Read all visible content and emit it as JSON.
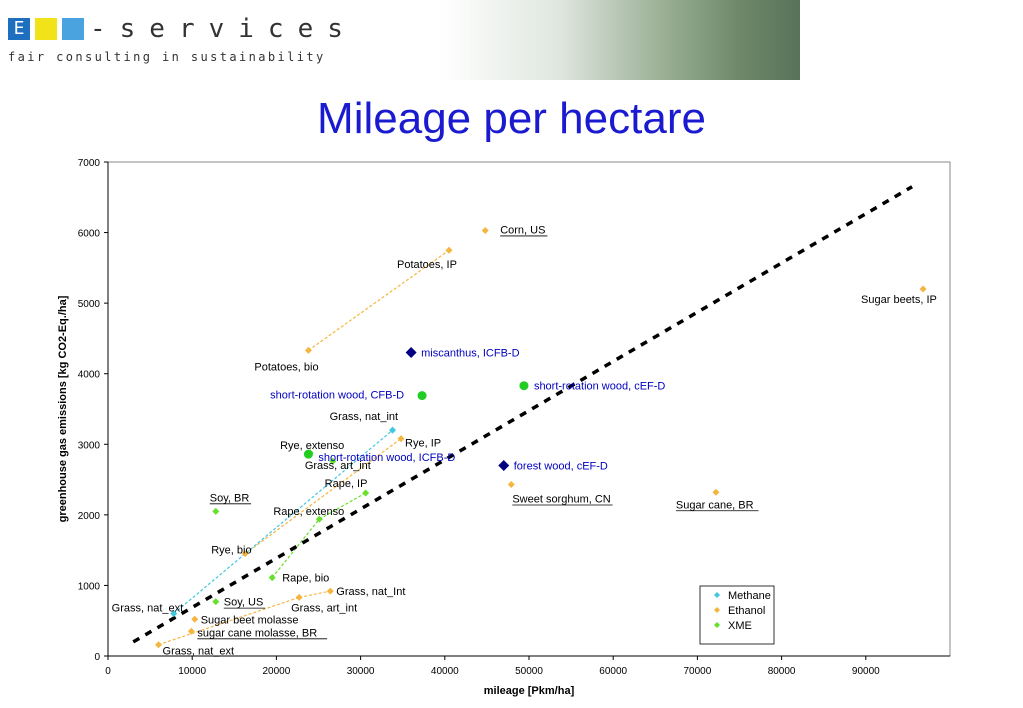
{
  "header": {
    "brand": "-services",
    "tagline": "fair consulting in sustainability",
    "logo_letter": "E"
  },
  "page_title": "Mileage per hectare",
  "colors": {
    "methane": "#40c8e0",
    "ethanol": "#f5b640",
    "xme": "#66e02a",
    "blue_marker": "#000080",
    "green_marker": "#22cc22",
    "trend": "#000000",
    "title": "#1a1ad0"
  },
  "chart_data": {
    "type": "scatter",
    "xlabel": "mileage [Pkm/ha]",
    "ylabel": "greenhouse gas emissions [kg CO2-Eq./ha]",
    "xlim": [
      0,
      100000
    ],
    "ylim": [
      0,
      7000
    ],
    "xticks": [
      "0",
      "10000",
      "20000",
      "30000",
      "40000",
      "50000",
      "60000",
      "70000",
      "80000",
      "90000"
    ],
    "yticks": [
      "0",
      "1000",
      "2000",
      "3000",
      "4000",
      "5000",
      "6000",
      "7000"
    ],
    "grid": "horizontal",
    "legend": {
      "position": "bottom-right",
      "entries": [
        "Methane",
        "Ethanol",
        "XME"
      ]
    },
    "trend_line": [
      [
        3000,
        200
      ],
      [
        95500,
        6650
      ]
    ],
    "series": [
      {
        "name": "Methane",
        "points": [
          {
            "label": "Grass, nat_ext",
            "x": 7800,
            "y": 600
          },
          {
            "label": "Grass, nat_int",
            "x": 33800,
            "y": 3200
          }
        ]
      },
      {
        "name": "Ethanol",
        "points": [
          {
            "label": "Corn, US",
            "x": 44800,
            "y": 6030
          },
          {
            "label": "Potatoes, IP",
            "x": 40500,
            "y": 5750
          },
          {
            "label": "Potatoes, bio",
            "x": 23800,
            "y": 4330
          },
          {
            "label": "Sugar beets, IP",
            "x": 96800,
            "y": 5200
          },
          {
            "label": "Rye, IP",
            "x": 34800,
            "y": 3080
          },
          {
            "label": "Rye, bio",
            "x": 16300,
            "y": 1450
          },
          {
            "label": "Sweet sorghum, CN",
            "x": 47900,
            "y": 2430
          },
          {
            "label": "Sugar cane, BR",
            "x": 72200,
            "y": 2320
          },
          {
            "label": "Grass, nat_Int",
            "x": 26400,
            "y": 920
          },
          {
            "label": "Grass, art_int",
            "x": 22700,
            "y": 830
          },
          {
            "label": "Sugar beet molasse",
            "x": 10300,
            "y": 520
          },
          {
            "label": "sugar cane molasse, BR",
            "x": 9900,
            "y": 350
          },
          {
            "label": "Grass, nat_ext",
            "x": 6000,
            "y": 160
          }
        ]
      },
      {
        "name": "XME",
        "points": [
          {
            "label": "Rape, IP",
            "x": 30600,
            "y": 2310
          },
          {
            "label": "Rape, extenso",
            "x": 25100,
            "y": 1940
          },
          {
            "label": "Rape, bio",
            "x": 19500,
            "y": 1110
          },
          {
            "label": "Soy, BR",
            "x": 12800,
            "y": 2050
          },
          {
            "label": "Soy, US",
            "x": 12800,
            "y": 770
          },
          {
            "label": "Rye, extenso",
            "x": 24000,
            "y": 2880
          },
          {
            "label": "Grass, art_int",
            "x": 26700,
            "y": 2760
          }
        ]
      }
    ],
    "connections": [
      {
        "series": "Ethanol",
        "from": "Potatoes, bio",
        "to": "Potatoes, IP"
      },
      {
        "series": "Ethanol",
        "from": "Rye, bio",
        "to": "Rye, IP"
      },
      {
        "series": "Ethanol",
        "from": "Grass, nat_ext",
        "to": "Grass, art_int"
      },
      {
        "series": "Ethanol",
        "from": "Grass, art_int",
        "to": "Grass, nat_Int"
      },
      {
        "series": "Methane",
        "from": "Grass, nat_ext",
        "to": "Grass, nat_int"
      },
      {
        "series": "XME",
        "from": "Rape, bio",
        "to": "Rape, extenso"
      },
      {
        "series": "XME",
        "from": "Rape, extenso",
        "to": "Rape, IP"
      }
    ],
    "highlighted": [
      {
        "label": "miscanthus, ICFB-D",
        "x": 36000,
        "y": 4300,
        "marker": "diamond",
        "color": "#000080"
      },
      {
        "label": "short-rotation wood, CFB-D",
        "x": 37300,
        "y": 3690,
        "marker": "circle",
        "color": "#22cc22"
      },
      {
        "label": "short-rotation wood, cEF-D",
        "x": 49400,
        "y": 3830,
        "marker": "circle",
        "color": "#22cc22"
      },
      {
        "label": "short-rotation wood, ICFB-D",
        "x": 23800,
        "y": 2860,
        "marker": "circle",
        "color": "#22cc22"
      },
      {
        "label": "forest wood, cEF-D",
        "x": 47000,
        "y": 2700,
        "marker": "diamond",
        "color": "#000080"
      }
    ]
  }
}
